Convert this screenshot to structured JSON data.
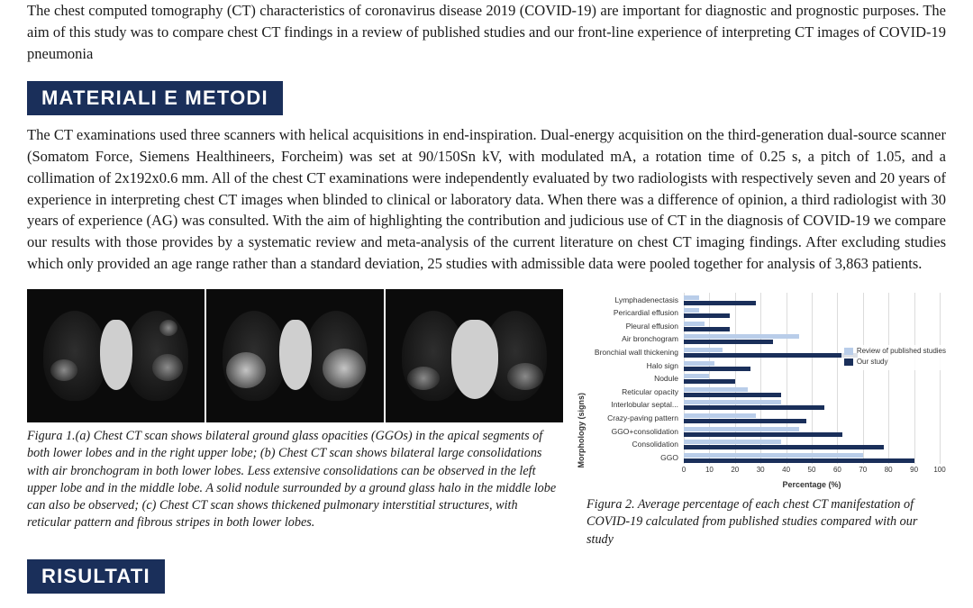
{
  "intro": "The chest computed tomography (CT) characteristics of coronavirus disease 2019 (COVID-19) are important for diagnostic and prognostic purposes. The aim of this study was to compare chest CT findings in a review of published studies and our front-line experience of interpreting CT images of COVID-19 pneumonia",
  "sections": {
    "methods_title": "MATERIALI E METODI",
    "methods_body": "The CT examinations used three scanners with helical acquisitions in end-inspiration. Dual-energy acquisition on the third-generation dual-source scanner (Somatom Force, Siemens Healthineers, Forcheim) was set at 90/150Sn kV, with modulated mA, a rotation time of 0.25 s, a pitch of 1.05, and a collimation of 2x192x0.6 mm. All of the chest CT examinations were independently evaluated by two radiologists with respectively seven and 20  years of experience in interpreting chest CT images when blinded to clinical or laboratory data. When there was a difference of opinion, a third radiologist with 30 years of experience (AG) was consulted. With the aim of highlighting the contribution and judicious use of CT in the diagnosis of COVID-19 we compare our results with those provides by a systematic review and meta-analysis of the current literature on chest CT imaging findings.  After excluding studies which only provided an age range rather than a standard deviation, 25 studies with admissible data were pooled together for analysis of 3,863 patients.",
    "results_title": "RISULTATI"
  },
  "figure1": {
    "caption": "Figura 1.(a) Chest CT scan shows bilateral ground glass opacities (GGOs) in the apical segments of both lower lobes and in the right upper lobe; (b) Chest CT scan shows bilateral large consolidations with air bronchogram in both lower lobes. Less extensive consolidations can be observed in the left upper lobe and in the middle lobe. A solid nodule surrounded by a ground glass halo in the middle lobe can also be observed; (c) Chest CT scan shows thickened pulmonary interstitial structures, with reticular pattern and fibrous stripes in both lower lobes."
  },
  "figure2": {
    "caption": "Figura 2. Average percentage of each chest CT manifestation of COVID-19 calculated from published studies compared with our study",
    "chart": {
      "type": "horizontal-grouped-bar",
      "y_axis_label": "Morphology (signs)",
      "x_axis_label": "Percentage (%)",
      "xlim": [
        0,
        100
      ],
      "xtick_step": 10,
      "categories": [
        "Lymphadenectasis",
        "Pericardial effusion",
        "Pleural effusion",
        "Air bronchogram",
        "Bronchial wall thickening",
        "Halo sign",
        "Nodule",
        "Reticular opacity",
        "Interlobular septal...",
        "Crazy-paving pattern",
        "GGO+consolidation",
        "Consolidation",
        "GGO"
      ],
      "series": [
        {
          "name": "Review of published studies",
          "color": "#b9cde9",
          "values": [
            6,
            6,
            8,
            45,
            15,
            12,
            10,
            25,
            38,
            28,
            45,
            38,
            70
          ]
        },
        {
          "name": "Our study",
          "color": "#1a2f5a",
          "values": [
            28,
            18,
            18,
            35,
            68,
            26,
            20,
            38,
            55,
            48,
            62,
            78,
            90
          ]
        }
      ],
      "background_color": "#ffffff",
      "grid_color": "#dcdcdc",
      "label_fontsize": 9,
      "tick_fontsize": 8
    }
  },
  "colors": {
    "header_bg": "#1a2f5a",
    "header_fg": "#ffffff"
  }
}
